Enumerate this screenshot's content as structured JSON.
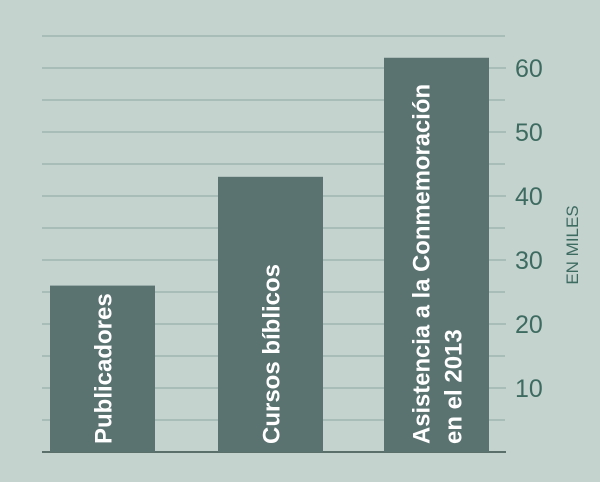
{
  "chart_data": {
    "type": "bar",
    "categories": [
      "Publicadores",
      "Cursos bíblicos",
      [
        "Asistencia a la Conmemoración",
        "en el 2013"
      ]
    ],
    "values": [
      26,
      43,
      61.6
    ],
    "ylabel": "EN MILES",
    "ylim": [
      0,
      65
    ],
    "yticks": [
      10,
      20,
      30,
      40,
      50,
      60
    ],
    "grid": true,
    "orientation": "vertical",
    "axis_side": "right",
    "colors": {
      "background": "#c5d3cf",
      "bar": "#5a7370",
      "grid": "#9fb5b0",
      "axis_text": "#3e6b60",
      "bar_label": "#ffffff"
    }
  }
}
